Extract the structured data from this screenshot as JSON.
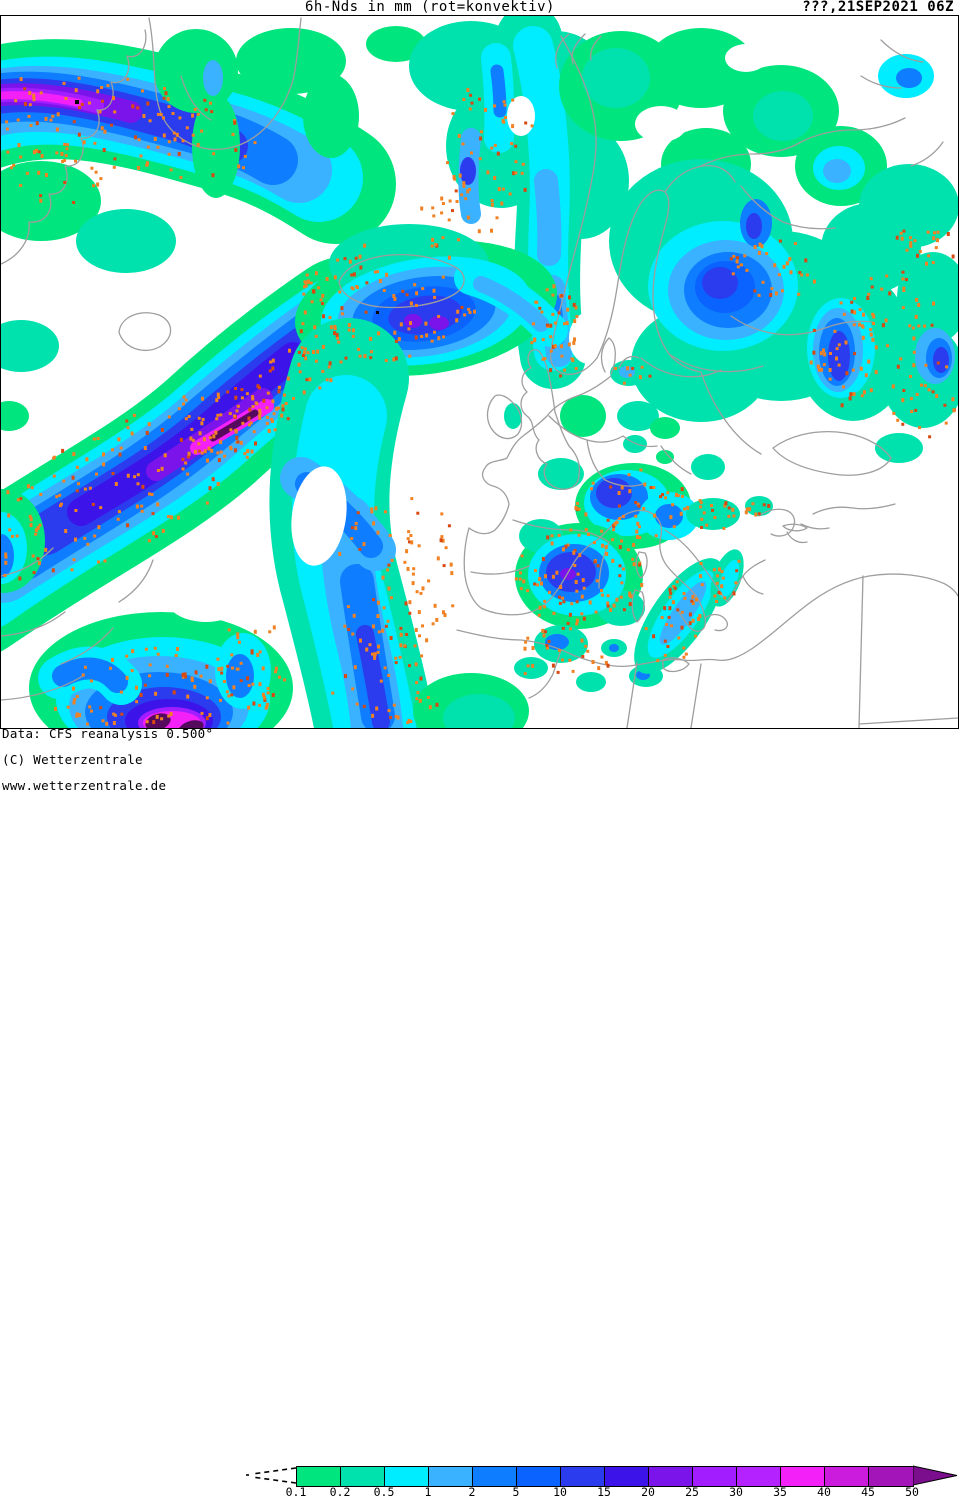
{
  "header": {
    "title": "6h-Nds in mm (rot=konvektiv)",
    "run_datetime": "???,21SEP2021 06Z"
  },
  "map": {
    "region": "Europe / North Atlantic",
    "background_color": "#ffffff",
    "coastline_color": "#9e9e9e",
    "border_color": "#000000",
    "convective_dot_color": "#f08224",
    "convective_dot_color_dark": "#d9480f",
    "extreme_dot_color": "#000000",
    "precip_palette": [
      "#00e57d",
      "#00e2ad",
      "#00ecff",
      "#3ab2ff",
      "#0f7dff",
      "#0a62ff",
      "#2a3cee",
      "#3c14ea",
      "#7a14ea",
      "#a21dff",
      "#b322ff",
      "#f320f7",
      "#cb1cdd",
      "#a315b8",
      "#560a5e"
    ]
  },
  "legend": {
    "below_min_style": "dashed-funnel",
    "boundaries": [
      "0.1",
      "0.2",
      "0.5",
      "1",
      "2",
      "5",
      "10",
      "15",
      "20",
      "25",
      "30",
      "35",
      "40",
      "45",
      "50"
    ],
    "swatch_colors": [
      "#00e57d",
      "#00e2ad",
      "#00ecff",
      "#3ab2ff",
      "#0f7dff",
      "#0a62ff",
      "#2a3cee",
      "#3c14ea",
      "#7a14ea",
      "#a21dff",
      "#b322ff",
      "#f320f7",
      "#cb1cdd",
      "#a315b8"
    ],
    "overflow_color": "#7a0e8c"
  },
  "footer": {
    "line1": "Data: CFS reanalysis 0.500°",
    "line2": "(C) Wetterzentrale",
    "line3": "www.wetterzentrale.de"
  }
}
